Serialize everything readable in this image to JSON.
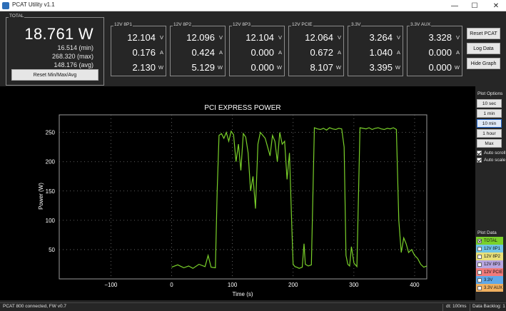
{
  "window": {
    "title": "PCAT Utility v1.1",
    "minimize": "—",
    "maximize": "☐",
    "close": "✕",
    "icon": "app-icon"
  },
  "total": {
    "label": "TOTAL",
    "watts": "18.761 W",
    "min": "16.514 (min)",
    "max": "268.320 (max)",
    "avg": "148.176 (avg)",
    "reset_label": "Reset Min/Max/Avg"
  },
  "rails": [
    {
      "label": "12V 8P1",
      "volts": "12.104",
      "amps": "0.176",
      "watts": "2.130"
    },
    {
      "label": "12V 8P2",
      "volts": "12.096",
      "amps": "0.424",
      "watts": "5.129"
    },
    {
      "label": "12V 8P3",
      "volts": "12.104",
      "amps": "0.000",
      "watts": "0.000"
    },
    {
      "label": "12V PCIE",
      "volts": "12.064",
      "amps": "0.672",
      "watts": "8.107"
    },
    {
      "label": "3.3V",
      "volts": "3.264",
      "amps": "1.040",
      "watts": "3.395"
    },
    {
      "label": "3.3V AUX",
      "volts": "3.328",
      "amps": "0.000",
      "watts": "0.000"
    }
  ],
  "units": {
    "v": "V",
    "a": "A",
    "w": "W"
  },
  "buttons": {
    "reset_pcat": "Reset PCAT",
    "log_data": "Log Data",
    "hide_graph": "Hide Graph"
  },
  "plot_options": {
    "title": "Plot Options",
    "ranges": [
      "10 sec",
      "1 min",
      "10 min",
      "1 hour",
      "Max"
    ],
    "selected_range": "10 min",
    "auto_scroll": "Auto scroll",
    "auto_scale": "Auto scale"
  },
  "plot_data": {
    "title": "Plot Data",
    "items": [
      {
        "label": "TOTAL",
        "color": "#7ad12a",
        "checked": true
      },
      {
        "label": "12V 8P1",
        "color": "#6fc4e8",
        "checked": false
      },
      {
        "label": "12V 8P2",
        "color": "#e8e07a",
        "checked": false
      },
      {
        "label": "12V 8P3",
        "color": "#b7a6e0",
        "checked": false
      },
      {
        "label": "12V PCIE",
        "color": "#f07a7a",
        "checked": false
      },
      {
        "label": "3.3V",
        "color": "#5fa8e8",
        "checked": false
      },
      {
        "label": "3.3V AUX",
        "color": "#f0b060",
        "checked": false
      }
    ]
  },
  "status": {
    "connection": "PCAT 800 connected, FW v0.7",
    "dt": "dt: 100ms",
    "backlog": "Data Backlog: 1"
  },
  "chart_data": {
    "type": "line",
    "title": "PCI EXPRESS POWER",
    "xlabel": "Time (s)",
    "ylabel": "Power (W)",
    "xlim": [
      -185,
      420
    ],
    "ylim": [
      0,
      280
    ],
    "xticks": [
      -100,
      0,
      100,
      200,
      300,
      400
    ],
    "yticks": [
      50,
      100,
      150,
      200,
      250
    ],
    "grid": true,
    "line_color": "#7ad12a",
    "series": [
      {
        "values_x": [
          0,
          10,
          20,
          28,
          35,
          45,
          55,
          60,
          65,
          72,
          75,
          78,
          82,
          86,
          90,
          94,
          98,
          102,
          106,
          110,
          114,
          118,
          122,
          126,
          130,
          134,
          138,
          142,
          146,
          150,
          154,
          158,
          162,
          166,
          170,
          174,
          178,
          182,
          186,
          190,
          194,
          198,
          200,
          203,
          206,
          210,
          215,
          218,
          220,
          225,
          230,
          235,
          240,
          245,
          250,
          255,
          260,
          265,
          270,
          275,
          280,
          284,
          287,
          290,
          293,
          296,
          300,
          305,
          310,
          315,
          320,
          325,
          330,
          335,
          340,
          345,
          350,
          355,
          360,
          365,
          370,
          374,
          378,
          382,
          386,
          390,
          395,
          400,
          405,
          410,
          415,
          420
        ],
        "values_y": [
          20,
          24,
          19,
          22,
          18,
          25,
          21,
          40,
          20,
          19,
          150,
          245,
          248,
          240,
          250,
          235,
          252,
          246,
          200,
          230,
          185,
          248,
          242,
          215,
          150,
          175,
          120,
          230,
          250,
          245,
          240,
          225,
          210,
          245,
          235,
          200,
          250,
          230,
          235,
          170,
          215,
          85,
          25,
          21,
          20,
          18,
          20,
          60,
          25,
          22,
          24,
          258,
          256,
          255,
          257,
          254,
          258,
          256,
          255,
          257,
          256,
          225,
          40,
          25,
          22,
          55,
          27,
          21,
          258,
          257,
          256,
          258,
          255,
          257,
          258,
          256,
          255,
          257,
          256,
          258,
          255,
          100,
          45,
          70,
          60,
          45,
          50,
          40,
          35,
          25,
          20,
          22
        ]
      }
    ]
  }
}
